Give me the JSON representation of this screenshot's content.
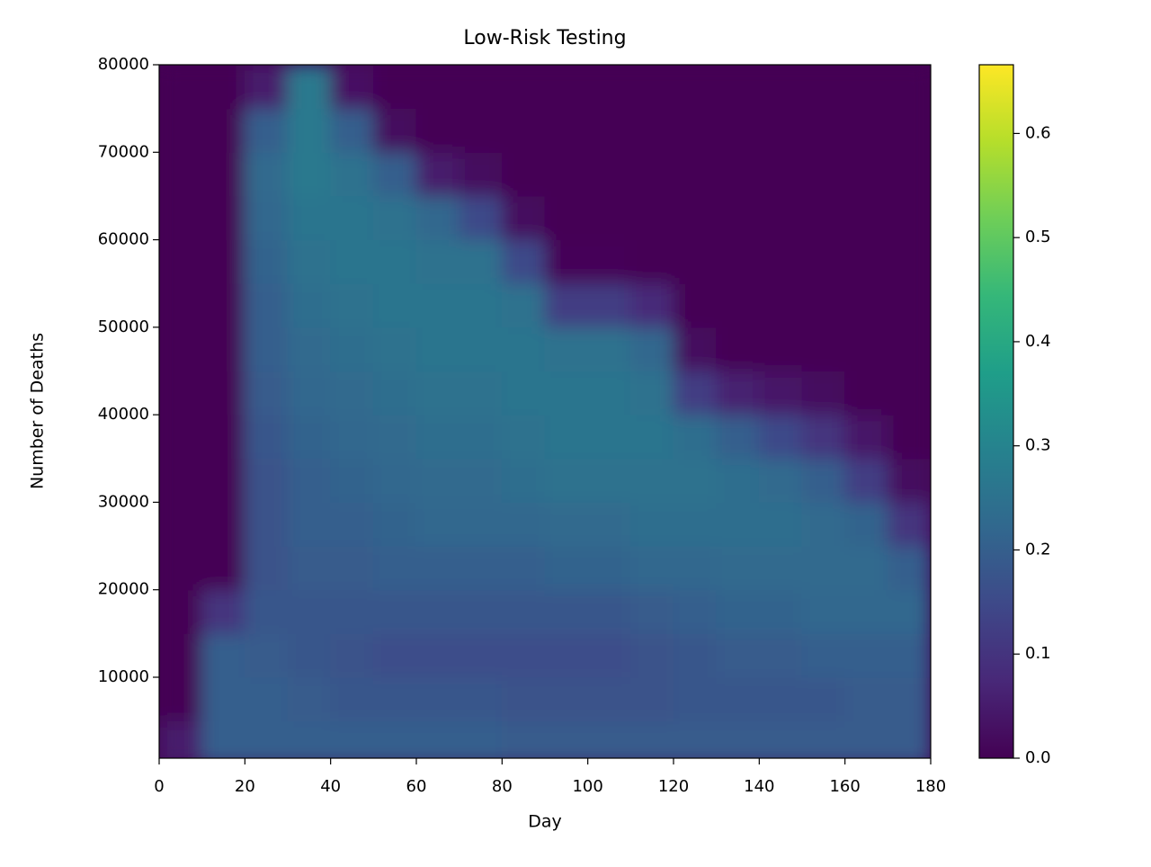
{
  "chart_data": {
    "type": "heatmap",
    "title": "Low-Risk Testing",
    "x_label": "Day",
    "y_label": "Number of Deaths",
    "x_edges": [
      0,
      10,
      20,
      30,
      40,
      50,
      60,
      70,
      80,
      90,
      100,
      110,
      120,
      130,
      140,
      150,
      160,
      170,
      180
    ],
    "y_edges": [
      0,
      5000,
      10000,
      15000,
      20000,
      25000,
      30000,
      35000,
      40000,
      45000,
      50000,
      55000,
      60000,
      65000,
      70000,
      75000,
      80000
    ],
    "z": [
      [
        0.05,
        0.2,
        0.2,
        0.2,
        0.2,
        0.2,
        0.2,
        0.2,
        0.19,
        0.19,
        0.19,
        0.19,
        0.19,
        0.19,
        0.19,
        0.19,
        0.19,
        0.19
      ],
      [
        0,
        0.2,
        0.2,
        0.19,
        0.18,
        0.18,
        0.18,
        0.18,
        0.17,
        0.17,
        0.17,
        0.17,
        0.18,
        0.18,
        0.18,
        0.18,
        0.19,
        0.19
      ],
      [
        0,
        0.2,
        0.19,
        0.18,
        0.17,
        0.16,
        0.16,
        0.16,
        0.16,
        0.16,
        0.16,
        0.17,
        0.18,
        0.19,
        0.19,
        0.2,
        0.2,
        0.2
      ],
      [
        0,
        0.1,
        0.18,
        0.18,
        0.18,
        0.18,
        0.18,
        0.18,
        0.18,
        0.18,
        0.18,
        0.19,
        0.2,
        0.21,
        0.21,
        0.22,
        0.22,
        0.22
      ],
      [
        0,
        0,
        0.17,
        0.19,
        0.19,
        0.2,
        0.2,
        0.2,
        0.2,
        0.21,
        0.21,
        0.22,
        0.22,
        0.23,
        0.23,
        0.23,
        0.23,
        0.2
      ],
      [
        0,
        0,
        0.17,
        0.2,
        0.2,
        0.21,
        0.22,
        0.22,
        0.22,
        0.23,
        0.23,
        0.24,
        0.24,
        0.24,
        0.24,
        0.23,
        0.21,
        0.1
      ],
      [
        0,
        0,
        0.17,
        0.2,
        0.21,
        0.22,
        0.23,
        0.23,
        0.24,
        0.25,
        0.25,
        0.25,
        0.25,
        0.24,
        0.23,
        0.2,
        0.12,
        0.02
      ],
      [
        0,
        0,
        0.18,
        0.21,
        0.22,
        0.23,
        0.24,
        0.24,
        0.25,
        0.26,
        0.26,
        0.26,
        0.24,
        0.2,
        0.15,
        0.1,
        0.04,
        0
      ],
      [
        0,
        0,
        0.19,
        0.22,
        0.23,
        0.24,
        0.25,
        0.25,
        0.26,
        0.26,
        0.26,
        0.25,
        0.12,
        0.06,
        0.04,
        0.02,
        0,
        0
      ],
      [
        0,
        0,
        0.2,
        0.23,
        0.24,
        0.25,
        0.26,
        0.26,
        0.26,
        0.25,
        0.25,
        0.22,
        0.02,
        0,
        0,
        0,
        0,
        0
      ],
      [
        0,
        0,
        0.2,
        0.24,
        0.25,
        0.26,
        0.26,
        0.26,
        0.25,
        0.12,
        0.12,
        0.08,
        0,
        0,
        0,
        0,
        0,
        0
      ],
      [
        0,
        0,
        0.21,
        0.25,
        0.26,
        0.26,
        0.25,
        0.25,
        0.15,
        0.01,
        0.01,
        0,
        0,
        0,
        0,
        0,
        0,
        0
      ],
      [
        0,
        0,
        0.22,
        0.26,
        0.26,
        0.25,
        0.22,
        0.15,
        0.02,
        0,
        0,
        0,
        0,
        0,
        0,
        0,
        0,
        0
      ],
      [
        0,
        0,
        0.23,
        0.27,
        0.25,
        0.2,
        0.05,
        0.02,
        0,
        0,
        0,
        0,
        0,
        0,
        0,
        0,
        0,
        0
      ],
      [
        0,
        0,
        0.2,
        0.27,
        0.2,
        0.02,
        0,
        0,
        0,
        0,
        0,
        0,
        0,
        0,
        0,
        0,
        0,
        0
      ],
      [
        0,
        0,
        0.05,
        0.27,
        0.03,
        0,
        0,
        0,
        0,
        0,
        0,
        0,
        0,
        0,
        0,
        0,
        0,
        0
      ]
    ],
    "colormap": "viridis",
    "xlim": [
      0,
      180
    ],
    "xticks": [
      0,
      20,
      40,
      60,
      80,
      100,
      120,
      140,
      160,
      180
    ],
    "ylim": [
      750,
      80000
    ],
    "yticks": [
      10000,
      20000,
      30000,
      40000,
      50000,
      60000,
      70000,
      80000
    ],
    "clim": [
      0,
      0.666
    ],
    "cticks": [
      {
        "value": 0,
        "label": "0.0"
      },
      0.1,
      0.2,
      0.3,
      0.4,
      0.5,
      0.6
    ]
  }
}
